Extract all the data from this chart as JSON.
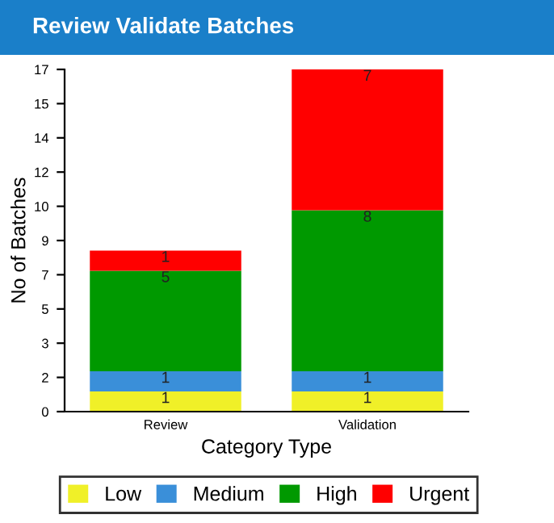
{
  "chart_data": {
    "type": "bar",
    "stacked": true,
    "title": "Review Validate Batches",
    "xlabel": "Category Type",
    "ylabel": "No of Batches",
    "categories": [
      "Review",
      "Validation"
    ],
    "series": [
      {
        "name": "Low",
        "color": "#f0f028",
        "values": [
          1,
          1
        ]
      },
      {
        "name": "Medium",
        "color": "#3a8fd9",
        "values": [
          1,
          1
        ]
      },
      {
        "name": "High",
        "color": "#009900",
        "values": [
          5,
          8
        ]
      },
      {
        "name": "Urgent",
        "color": "#ff0000",
        "values": [
          1,
          7
        ]
      }
    ],
    "ylim": [
      0,
      17
    ],
    "yticks": [
      0,
      {
        "value": 1.7,
        "label": "2"
      },
      {
        "value": 3.4,
        "label": "3"
      },
      {
        "value": 5.1,
        "label": "5"
      },
      {
        "value": 6.8,
        "label": "7"
      },
      {
        "value": 8.5,
        "label": "9"
      },
      {
        "value": 10.2,
        "label": "10"
      },
      {
        "value": 11.9,
        "label": "12"
      },
      {
        "value": 13.6,
        "label": "14"
      },
      {
        "value": 15.3,
        "label": "15"
      },
      17
    ],
    "data_labels": true,
    "legend": "bottom",
    "grid": false
  }
}
